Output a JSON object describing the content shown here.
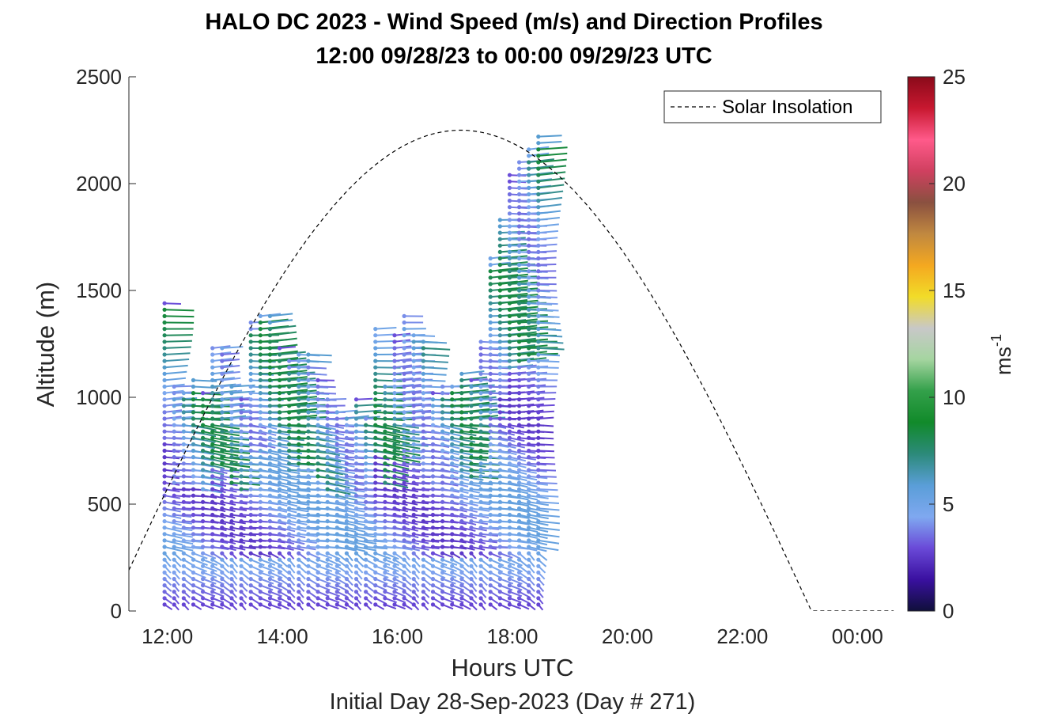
{
  "chart_data": {
    "type": "scatter",
    "title": "HALO DC 2023 - Wind Speed (m/s) and Direction Profiles",
    "subtitle": "12:00 09/28/23 to 00:00 09/29/23  UTC",
    "xlabel": "Hours UTC",
    "ylabel": "Altitude (m)",
    "footer": "Initial Day 28-Sep-2023 (Day # 271)",
    "xlim": [
      11.33,
      24.67
    ],
    "ylim": [
      0,
      2500
    ],
    "x_ticks": [
      "12:00",
      "14:00",
      "16:00",
      "18:00",
      "20:00",
      "22:00",
      "00:00"
    ],
    "x_tick_hours": [
      12,
      14,
      16,
      18,
      20,
      22,
      24
    ],
    "y_ticks": [
      "0",
      "500",
      "1000",
      "1500",
      "2000",
      "2500"
    ],
    "y_tick_values": [
      0,
      500,
      1000,
      1500,
      2000,
      2500
    ],
    "legend": {
      "label": "Solar Insolation",
      "position": "top-right"
    },
    "colorbar": {
      "label": "ms",
      "exponent": "-1",
      "range": [
        0,
        25
      ],
      "ticks": [
        "0",
        "5",
        "10",
        "15",
        "20",
        "25"
      ],
      "tick_values": [
        0,
        5,
        10,
        15,
        20,
        25
      ]
    },
    "profile_start_hour": 11.95,
    "profile_interval_hours": 0.1667,
    "profile_top_altitude_m": [
      1460,
      1050,
      1040,
      1080,
      1030,
      1250,
      1240,
      1050,
      1000,
      1360,
      1400,
      1380,
      1250,
      1170,
      1210,
      1200,
      1100,
      1000,
      940,
      920,
      1000,
      920,
      1330,
      1060,
      1290,
      1380,
      1300,
      1280,
      1040,
      1050,
      1070,
      1130,
      1100,
      1270,
      1650,
      1850,
      2050,
      2100,
      2180,
      2230
    ]
  },
  "legend_label": "Solar Insolation",
  "colorbar_label": "ms",
  "colorbar_exponent": "-1",
  "colors": {
    "colormap": [
      "#0f0f3a",
      "#3a10a0",
      "#6a4ad8",
      "#7fa8f0",
      "#5a9ed8",
      "#2c8a7a",
      "#118a2a",
      "#33a04a",
      "#a5d5a0",
      "#c8c8c8",
      "#f2dc28",
      "#f4a820",
      "#c08840",
      "#8a5040",
      "#d04060",
      "#ff5a8a",
      "#c81830",
      "#8a0a1a"
    ]
  }
}
